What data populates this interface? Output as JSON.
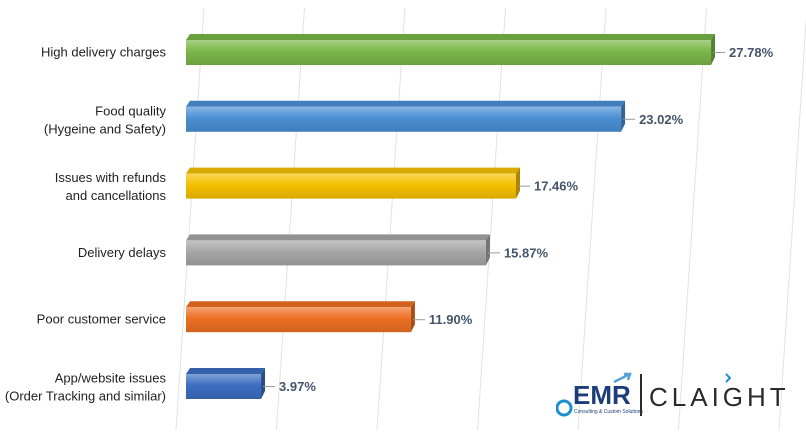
{
  "chart_data": {
    "type": "bar",
    "orientation": "horizontal",
    "categories": [
      [
        "High delivery charges"
      ],
      [
        "Food quality",
        "(Hygeine and Safety)"
      ],
      [
        "Issues with refunds",
        "and cancellations"
      ],
      [
        "Delivery delays"
      ],
      [
        "Poor customer service"
      ],
      [
        "App/website issues",
        "(Order Tracking and similar)"
      ]
    ],
    "values": [
      27.78,
      23.02,
      17.46,
      15.87,
      11.9,
      3.97
    ],
    "value_labels": [
      "27.78%",
      "23.02%",
      "17.46%",
      "15.87%",
      "11.90%",
      "3.97%"
    ],
    "bar_colors": [
      "#7ab648",
      "#4a8fd4",
      "#f5c000",
      "#a6a6a6",
      "#ec6f22",
      "#3c6ec0"
    ],
    "xlim": [
      0,
      30
    ],
    "gridlines": true,
    "legend": "none"
  },
  "logo": {
    "emr": "EMR",
    "emr_tagline": "Consulting & Custom Solutions",
    "claight": "CLAIGHT"
  }
}
